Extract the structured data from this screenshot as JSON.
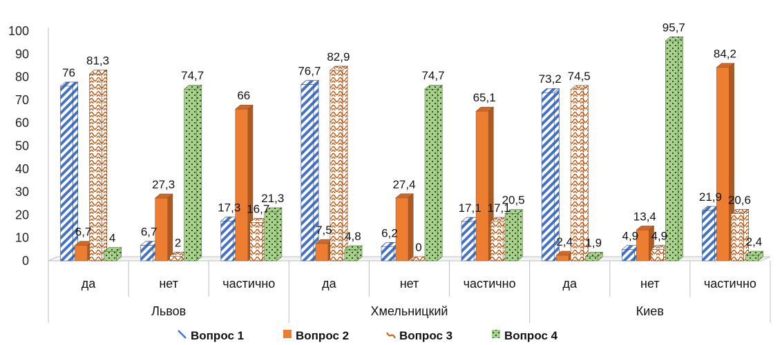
{
  "chart_data": {
    "type": "bar",
    "title": "",
    "xlabel": "",
    "ylabel": "",
    "ylim": [
      0,
      100
    ],
    "yticks": [
      0,
      10,
      20,
      30,
      40,
      50,
      60,
      70,
      80,
      90,
      100
    ],
    "three_d": true,
    "groups": [
      {
        "name": "Львов",
        "categories": [
          "да",
          "нет",
          "частично"
        ]
      },
      {
        "name": "Хмельницкий",
        "categories": [
          "да",
          "нет",
          "частично"
        ]
      },
      {
        "name": "Киев",
        "categories": [
          "да",
          "нет",
          "частично"
        ]
      }
    ],
    "series": [
      {
        "name": "Вопрос 1",
        "color": "#4472C4",
        "pattern": "diagonal-stripes",
        "values": [
          76,
          6.7,
          17.3,
          76.7,
          6.2,
          17.1,
          73.2,
          4.9,
          21.9
        ],
        "labels": [
          "76",
          "6,7",
          "17,3",
          "76,7",
          "6,2",
          "17,1",
          "73,2",
          "4,9",
          "21,9"
        ]
      },
      {
        "name": "Вопрос 2",
        "color": "#ED7D31",
        "pattern": "solid",
        "values": [
          6.7,
          27.3,
          66,
          7.5,
          27.4,
          65.1,
          2.4,
          13.4,
          84.2
        ],
        "labels": [
          "6,7",
          "27,3",
          "66",
          "7,5",
          "27,4",
          "65,1",
          "2,4",
          "13,4",
          "84,2"
        ]
      },
      {
        "name": "Вопрос 3",
        "color": "#C55A11",
        "pattern": "wave",
        "values": [
          81.3,
          2,
          16.7,
          82.9,
          0,
          17.1,
          74.5,
          4.9,
          20.6
        ],
        "labels": [
          "81,3",
          "2",
          "16,7",
          "82,9",
          "0",
          "17,1",
          "74,5",
          "4,9",
          "20,6"
        ]
      },
      {
        "name": "Вопрос 4",
        "color": "#70AD47",
        "pattern": "dots",
        "values": [
          4,
          74.7,
          21.3,
          4.8,
          74.7,
          20.5,
          1.9,
          95.7,
          2.4
        ],
        "labels": [
          "4",
          "74,7",
          "21,3",
          "4,8",
          "74,7",
          "20,5",
          "1,9",
          "95,7",
          "2,4"
        ]
      }
    ],
    "legend": {
      "position": "bottom"
    },
    "grid": false
  }
}
